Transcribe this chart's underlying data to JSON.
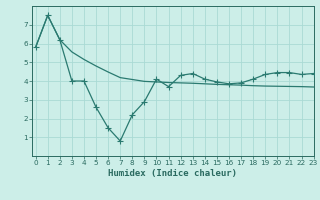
{
  "line1_x": [
    0,
    1,
    2,
    3,
    4,
    5,
    6,
    7,
    8,
    9,
    10,
    11,
    12,
    13,
    14,
    15,
    16,
    17,
    18,
    19,
    20,
    21,
    22,
    23
  ],
  "line1_y": [
    5.8,
    7.5,
    6.2,
    5.55,
    5.15,
    4.8,
    4.48,
    4.18,
    4.08,
    3.98,
    3.95,
    3.92,
    3.9,
    3.88,
    3.85,
    3.82,
    3.8,
    3.78,
    3.75,
    3.73,
    3.72,
    3.71,
    3.7,
    3.68
  ],
  "line2_x": [
    0,
    1,
    2,
    3,
    4,
    5,
    6,
    7,
    8,
    9,
    10,
    11,
    12,
    13,
    14,
    15,
    16,
    17,
    18,
    19,
    20,
    21,
    22,
    23
  ],
  "line2_y": [
    5.8,
    7.5,
    6.2,
    4.0,
    4.0,
    2.6,
    1.5,
    0.8,
    2.2,
    2.9,
    4.1,
    3.7,
    4.3,
    4.4,
    4.1,
    3.95,
    3.85,
    3.9,
    4.1,
    4.35,
    4.45,
    4.45,
    4.35,
    4.4
  ],
  "line_color": "#2a7a70",
  "bg_color": "#cceee8",
  "grid_color": "#aadad4",
  "axis_color": "#2a6a60",
  "xlabel": "Humidex (Indice chaleur)",
  "ylim": [
    0,
    8
  ],
  "xlim": [
    -0.3,
    23
  ],
  "yticks": [
    1,
    2,
    3,
    4,
    5,
    6,
    7
  ],
  "xticks": [
    0,
    1,
    2,
    3,
    4,
    5,
    6,
    7,
    8,
    9,
    10,
    11,
    12,
    13,
    14,
    15,
    16,
    17,
    18,
    19,
    20,
    21,
    22,
    23
  ],
  "marker": "+",
  "markersize": 4.0,
  "linewidth": 0.9,
  "tick_labelsize": 5.2,
  "xlabel_fontsize": 6.5
}
